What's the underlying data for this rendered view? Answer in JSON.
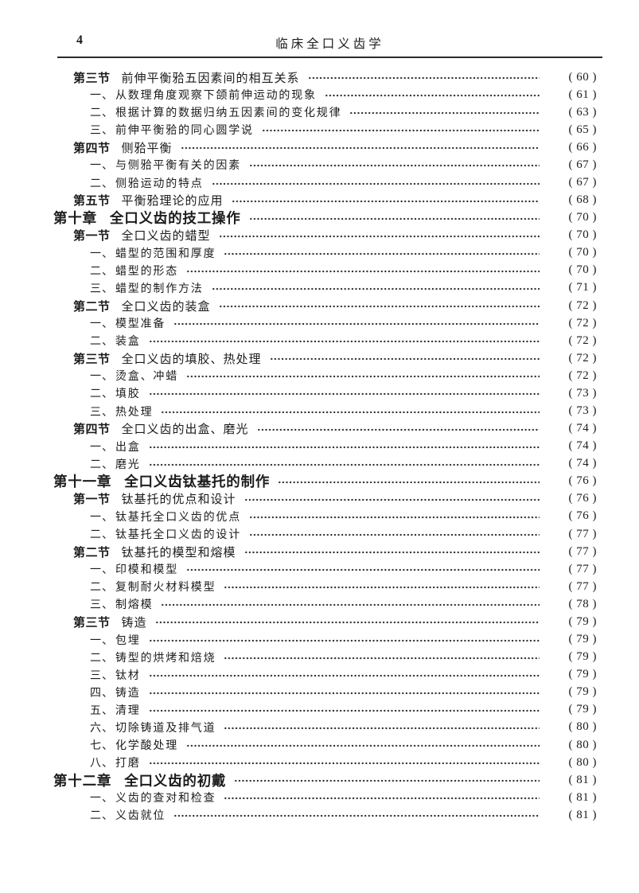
{
  "page": {
    "number": "4",
    "running_head": "临床全口义齿学"
  },
  "toc": {
    "entries": [
      {
        "level": "section",
        "label": "第三节",
        "title": "前伸平衡𬌗五因素间的相互关系",
        "page": "( 60 )"
      },
      {
        "level": "item",
        "label": "一、",
        "title": "从数理角度观察下颌前伸运动的现象",
        "page": "( 61 )"
      },
      {
        "level": "item",
        "label": "二、",
        "title": "根据计算的数据归纳五因素间的变化规律",
        "page": "( 63 )"
      },
      {
        "level": "item",
        "label": "三、",
        "title": "前伸平衡𬌗的同心圆学说",
        "page": "( 65 )"
      },
      {
        "level": "section",
        "label": "第四节",
        "title": "侧𬌗平衡",
        "page": "( 66 )"
      },
      {
        "level": "item",
        "label": "一、",
        "title": "与侧𬌗平衡有关的因素",
        "page": "( 67 )"
      },
      {
        "level": "item",
        "label": "二、",
        "title": "侧𬌗运动的特点",
        "page": "( 67 )"
      },
      {
        "level": "section",
        "label": "第五节",
        "title": "平衡𬌗理论的应用",
        "page": "( 68 )"
      },
      {
        "level": "chapter",
        "label": "第十章",
        "title": "全口义齿的技工操作",
        "page": "( 70 )"
      },
      {
        "level": "section",
        "label": "第一节",
        "title": "全口义齿的蜡型",
        "page": "( 70 )"
      },
      {
        "level": "item",
        "label": "一、",
        "title": "蜡型的范围和厚度",
        "page": "( 70 )"
      },
      {
        "level": "item",
        "label": "二、",
        "title": "蜡型的形态",
        "page": "( 70 )"
      },
      {
        "level": "item",
        "label": "三、",
        "title": "蜡型的制作方法",
        "page": "( 71 )"
      },
      {
        "level": "section",
        "label": "第二节",
        "title": "全口义齿的装盒",
        "page": "( 72 )"
      },
      {
        "level": "item",
        "label": "一、",
        "title": "模型准备",
        "page": "( 72 )"
      },
      {
        "level": "item",
        "label": "二、",
        "title": "装盒",
        "page": "( 72 )"
      },
      {
        "level": "section",
        "label": "第三节",
        "title": "全口义齿的填胶、热处理",
        "page": "( 72 )"
      },
      {
        "level": "item",
        "label": "一、",
        "title": "烫盒、冲蜡",
        "page": "( 72 )"
      },
      {
        "level": "item",
        "label": "二、",
        "title": "填胶",
        "page": "( 73 )"
      },
      {
        "level": "item",
        "label": "三、",
        "title": "热处理",
        "page": "( 73 )"
      },
      {
        "level": "section",
        "label": "第四节",
        "title": "全口义齿的出盒、磨光",
        "page": "( 74 )"
      },
      {
        "level": "item",
        "label": "一、",
        "title": "出盒",
        "page": "( 74 )"
      },
      {
        "level": "item",
        "label": "二、",
        "title": "磨光",
        "page": "( 74 )"
      },
      {
        "level": "chapter",
        "label": "第十一章",
        "title": "全口义齿钛基托的制作",
        "page": "( 76 )"
      },
      {
        "level": "section",
        "label": "第一节",
        "title": "钛基托的优点和设计",
        "page": "( 76 )"
      },
      {
        "level": "item",
        "label": "一、",
        "title": "钛基托全口义齿的优点",
        "page": "( 76 )"
      },
      {
        "level": "item",
        "label": "二、",
        "title": "钛基托全口义齿的设计",
        "page": "( 77 )"
      },
      {
        "level": "section",
        "label": "第二节",
        "title": "钛基托的模型和熔模",
        "page": "( 77 )"
      },
      {
        "level": "item",
        "label": "一、",
        "title": "印模和模型",
        "page": "( 77 )"
      },
      {
        "level": "item",
        "label": "二、",
        "title": "复制耐火材料模型",
        "page": "( 77 )"
      },
      {
        "level": "item",
        "label": "三、",
        "title": "制熔模",
        "page": "( 78 )"
      },
      {
        "level": "section",
        "label": "第三节",
        "title": "铸造",
        "page": "( 79 )"
      },
      {
        "level": "item",
        "label": "一、",
        "title": "包埋",
        "page": "( 79 )"
      },
      {
        "level": "item",
        "label": "二、",
        "title": "铸型的烘烤和焙烧",
        "page": "( 79 )"
      },
      {
        "level": "item",
        "label": "三、",
        "title": "钛材",
        "page": "( 79 )"
      },
      {
        "level": "item",
        "label": "四、",
        "title": "铸造",
        "page": "( 79 )"
      },
      {
        "level": "item",
        "label": "五、",
        "title": "清理",
        "page": "( 79 )"
      },
      {
        "level": "item",
        "label": "六、",
        "title": "切除铸道及排气道",
        "page": "( 80 )"
      },
      {
        "level": "item",
        "label": "七、",
        "title": "化学酸处理",
        "page": "( 80 )"
      },
      {
        "level": "item",
        "label": "八、",
        "title": "打磨",
        "page": "( 80 )"
      },
      {
        "level": "chapter",
        "label": "第十二章",
        "title": "全口义齿的初戴",
        "page": "( 81 )"
      },
      {
        "level": "item",
        "label": "一、",
        "title": "义齿的查对和检查",
        "page": "( 81 )"
      },
      {
        "level": "item",
        "label": "二、",
        "title": "义齿就位",
        "page": "( 81 )"
      }
    ]
  }
}
